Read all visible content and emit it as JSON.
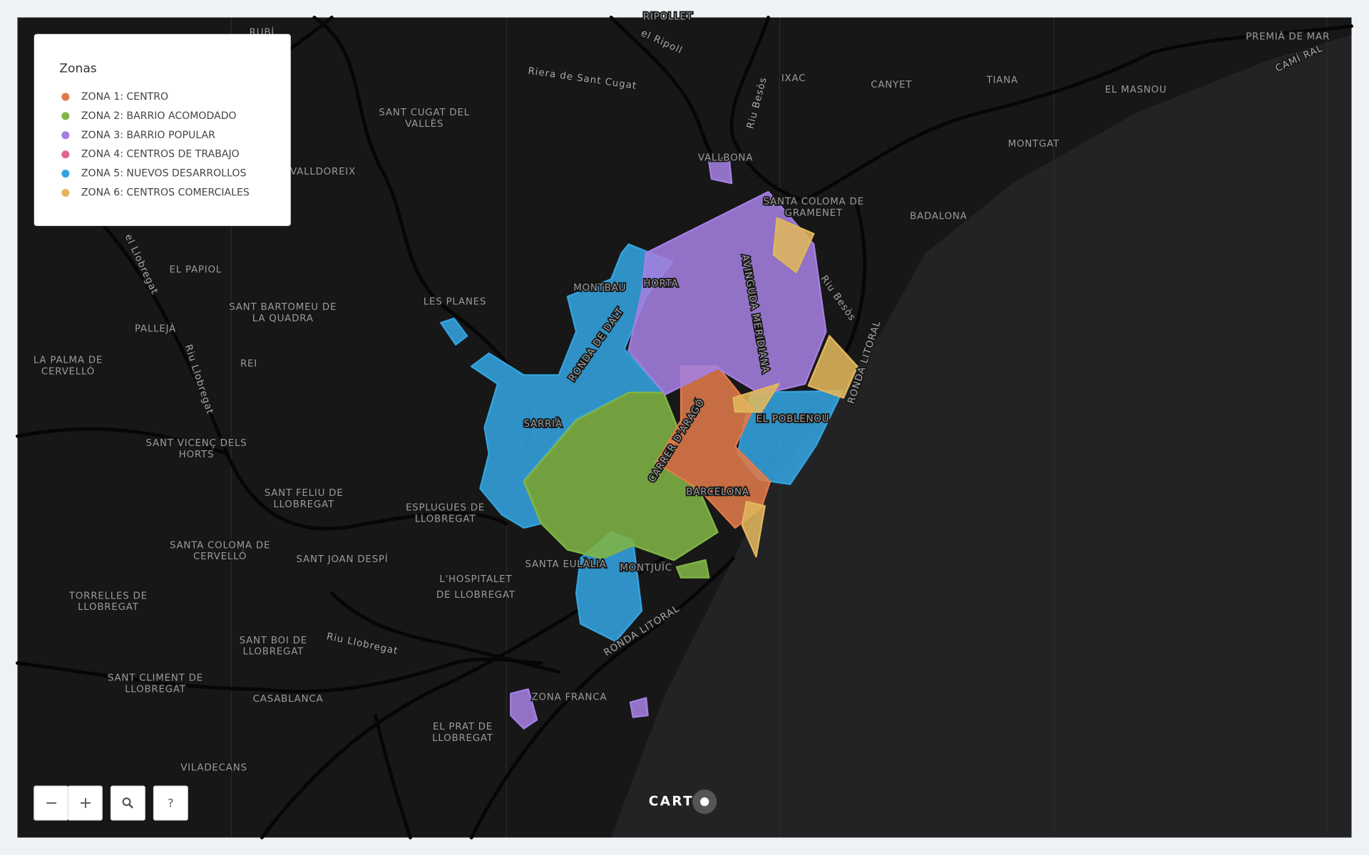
{
  "legend": {
    "title": "Zonas",
    "items": [
      {
        "label": "ZONA 1: CENTRO",
        "color": "#e07a4a"
      },
      {
        "label": "ZONA 2: BARRIO ACOMODADO",
        "color": "#80b446"
      },
      {
        "label": "ZONA 3: BARRIO POPULAR",
        "color": "#a47fe0"
      },
      {
        "label": "ZONA 4: CENTROS DE TRABAJO",
        "color": "#e0668a"
      },
      {
        "label": "ZONA 5: NUEVOS DESARROLLOS",
        "color": "#33a3de"
      },
      {
        "label": "ZONA 6: CENTROS COMERCIALES",
        "color": "#e0b65c"
      }
    ]
  },
  "places": [
    "RUBÍ",
    "RIPOLLET",
    "SANT CUGAT DEL",
    "VALLÈS",
    "VALLDOREIX",
    "EL PAPIOL",
    "SANT BARTOMEU DE",
    "LA QUADRA",
    "PALLEJÀ",
    "LA PALMA DE",
    "CERVELLÓ",
    "SANT VICENÇ DELS",
    "HORTS",
    "SANT FELIU DE",
    "LLOBREGAT",
    "ESPLUGUES DE",
    "LLOBREGAT",
    "SANTA COLOMA DE",
    "CERVELLÓ",
    "SANT JOAN DESPÍ",
    "L'HOSPITALET",
    "DE LLOBREGAT",
    "TORRELLES DE",
    "LLOBREGAT",
    "SANT BOI DE",
    "LLOBREGAT",
    "SANT CLIMENT DE",
    "LLOBREGAT",
    "CASABLANCA",
    "EL PRAT DE",
    "LLOBREGAT",
    "VILADECANS",
    "LES PLANES",
    "MONTBAU",
    "HORTA",
    "SARRIÀ",
    "BARCELONA",
    "EL POBLENOU",
    "SANTA EULÀLIA",
    "MONTJUÏC",
    "ZONA FRANCA",
    "VALLBONA",
    "SANTA COLOMA DE",
    "GRAMENET",
    "BADALONA",
    "IXAC",
    "CANYET",
    "TIANA",
    "EL MASNOU",
    "MONTGAT",
    "PREMIÀ DE MAR",
    "REI"
  ],
  "roads": [
    "RONDA DE DALT",
    "CARRER D'ARAGÓ",
    "AVINGUDA MERIDIANA",
    "RONDA LITORAL",
    "RONDA LITORAL",
    "Riera de Sant Cugat",
    "Riu Llobregat",
    "Riu Llobregat",
    "Riu Besòs",
    "Riu Besòs",
    "el Llobregat",
    "el Ripoll",
    "CAMÍ RAL"
  ],
  "controls": {
    "zoom_out": "−",
    "zoom_in": "+",
    "help": "?"
  },
  "logo": "CART"
}
